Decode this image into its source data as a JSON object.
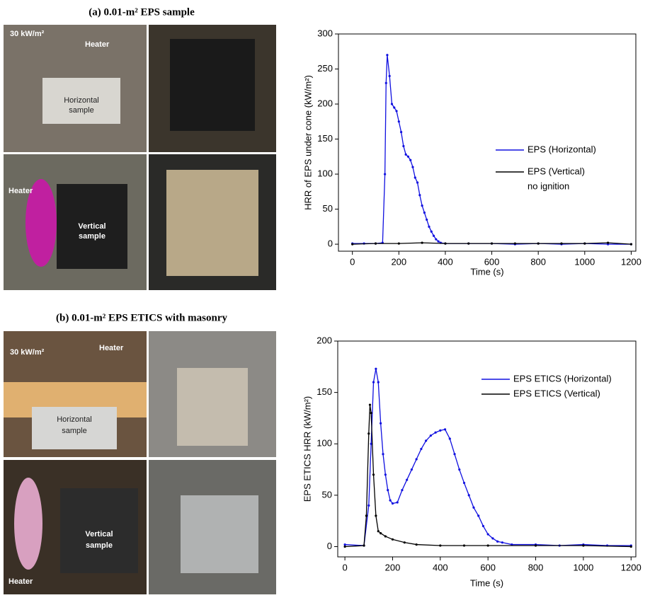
{
  "panel_titles": [
    "(a) 0.01-m² EPS sample",
    "(b) 0.01-m² EPS ETICS with masonry"
  ],
  "photo_labels": {
    "a": [
      "30 kW/m²",
      "Heater",
      "Horizontal",
      "sample",
      "Heater",
      "Vertical",
      "sample"
    ],
    "b": [
      "30 kW/m²",
      "Heater",
      "Horizontal",
      "sample",
      "Vertical",
      "sample",
      "Heater"
    ]
  },
  "chart_data": [
    {
      "type": "line",
      "xlabel": "Time (s)",
      "ylabel": "HRR of EPS under cone (kW/m²)",
      "xlim": [
        -60,
        1220
      ],
      "ylim": [
        -10,
        300
      ],
      "xticks": [
        0,
        200,
        400,
        600,
        800,
        1000,
        1200
      ],
      "yticks": [
        0,
        50,
        100,
        150,
        200,
        250,
        300
      ],
      "annotation": "no ignition",
      "series": [
        {
          "name": "EPS (Horizontal)",
          "color": "#1010e0",
          "x": [
            0,
            50,
            100,
            130,
            140,
            145,
            150,
            160,
            170,
            180,
            190,
            200,
            210,
            220,
            230,
            240,
            250,
            260,
            270,
            280,
            290,
            300,
            310,
            320,
            330,
            340,
            350,
            360,
            370,
            380,
            400,
            500,
            600,
            700,
            800,
            900,
            1000,
            1100,
            1200
          ],
          "values": [
            1,
            1,
            1,
            2,
            100,
            230,
            270,
            240,
            200,
            195,
            190,
            175,
            160,
            140,
            128,
            125,
            120,
            110,
            95,
            88,
            70,
            55,
            45,
            35,
            25,
            18,
            12,
            7,
            4,
            2,
            1,
            1,
            1,
            0,
            1,
            0,
            1,
            0,
            0
          ]
        },
        {
          "name": "EPS (Vertical)",
          "color": "#000000",
          "x": [
            0,
            100,
            200,
            300,
            400,
            500,
            600,
            700,
            800,
            900,
            1000,
            1100,
            1200
          ],
          "values": [
            0,
            1,
            1,
            2,
            1,
            1,
            1,
            1,
            1,
            1,
            1,
            2,
            0
          ]
        }
      ]
    },
    {
      "type": "line",
      "xlabel": "Time (s)",
      "ylabel": "EPS ETICS HRR (kW/m²)",
      "xlim": [
        -30,
        1220
      ],
      "ylim": [
        -10,
        200
      ],
      "xticks": [
        0,
        200,
        400,
        600,
        800,
        1000,
        1200
      ],
      "yticks": [
        0,
        50,
        100,
        150,
        200
      ],
      "series": [
        {
          "name": "EPS ETICS (Horizontal)",
          "color": "#1010e0",
          "x": [
            0,
            80,
            100,
            110,
            120,
            130,
            140,
            150,
            160,
            170,
            180,
            190,
            200,
            220,
            240,
            260,
            280,
            300,
            320,
            340,
            360,
            380,
            400,
            420,
            440,
            460,
            480,
            500,
            520,
            540,
            560,
            580,
            600,
            620,
            640,
            660,
            700,
            800,
            900,
            1000,
            1100,
            1200
          ],
          "values": [
            2,
            1,
            40,
            100,
            160,
            173,
            160,
            120,
            90,
            70,
            55,
            45,
            42,
            43,
            55,
            65,
            75,
            85,
            95,
            103,
            108,
            111,
            113,
            114,
            105,
            90,
            75,
            62,
            50,
            38,
            30,
            20,
            12,
            8,
            5,
            4,
            2,
            2,
            1,
            2,
            1,
            1
          ]
        },
        {
          "name": "EPS ETICS (Vertical)",
          "color": "#000000",
          "x": [
            0,
            80,
            90,
            100,
            105,
            110,
            120,
            130,
            140,
            150,
            170,
            200,
            250,
            300,
            400,
            500,
            600,
            800,
            1000,
            1200
          ],
          "values": [
            0,
            1,
            30,
            110,
            138,
            130,
            70,
            30,
            15,
            13,
            10,
            7,
            4,
            2,
            1,
            1,
            1,
            1,
            1,
            0
          ]
        }
      ]
    }
  ]
}
